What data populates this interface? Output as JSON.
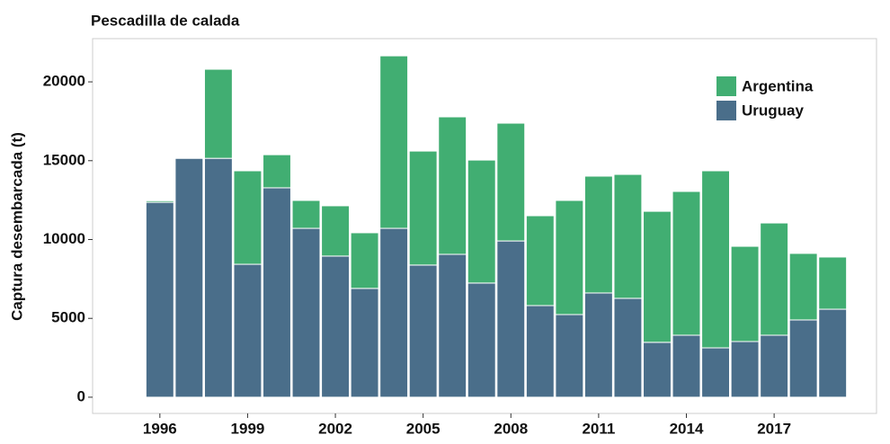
{
  "chart_data": {
    "type": "stacked_bar",
    "title": "Pescadilla de calada",
    "y_label": "Captura desembarcada (t)",
    "x": [
      1996,
      1997,
      1998,
      1999,
      2000,
      2001,
      2002,
      2003,
      2004,
      2005,
      2006,
      2007,
      2008,
      2009,
      2010,
      2011,
      2012,
      2013,
      2014,
      2015,
      2016,
      2017,
      2018,
      2019
    ],
    "series": [
      {
        "name": "Argentina",
        "color": "#41ae72",
        "values": [
          100,
          50,
          5650,
          5930,
          2100,
          1770,
          3190,
          3530,
          10940,
          7230,
          8720,
          7800,
          7470,
          5700,
          7240,
          7410,
          7860,
          8310,
          9120,
          11230,
          6040,
          7120,
          4220,
          3310
        ]
      },
      {
        "name": "Uruguay",
        "color": "#4a6e8a",
        "values": [
          12360,
          15150,
          15150,
          8430,
          13280,
          10710,
          8950,
          6900,
          10710,
          8380,
          9060,
          7240,
          9910,
          5810,
          5240,
          6610,
          6270,
          3480,
          3930,
          3130,
          3530,
          3930,
          4900,
          5580
        ]
      }
    ],
    "xlim": [
      1993.7,
      2020.5
    ],
    "xticks": [
      1996,
      1999,
      2002,
      2005,
      2008,
      2011,
      2014,
      2017
    ],
    "ylim": [
      -1030,
      22740
    ],
    "yticks": [
      0,
      5000,
      10000,
      15000,
      20000
    ],
    "legend": "top-right"
  }
}
